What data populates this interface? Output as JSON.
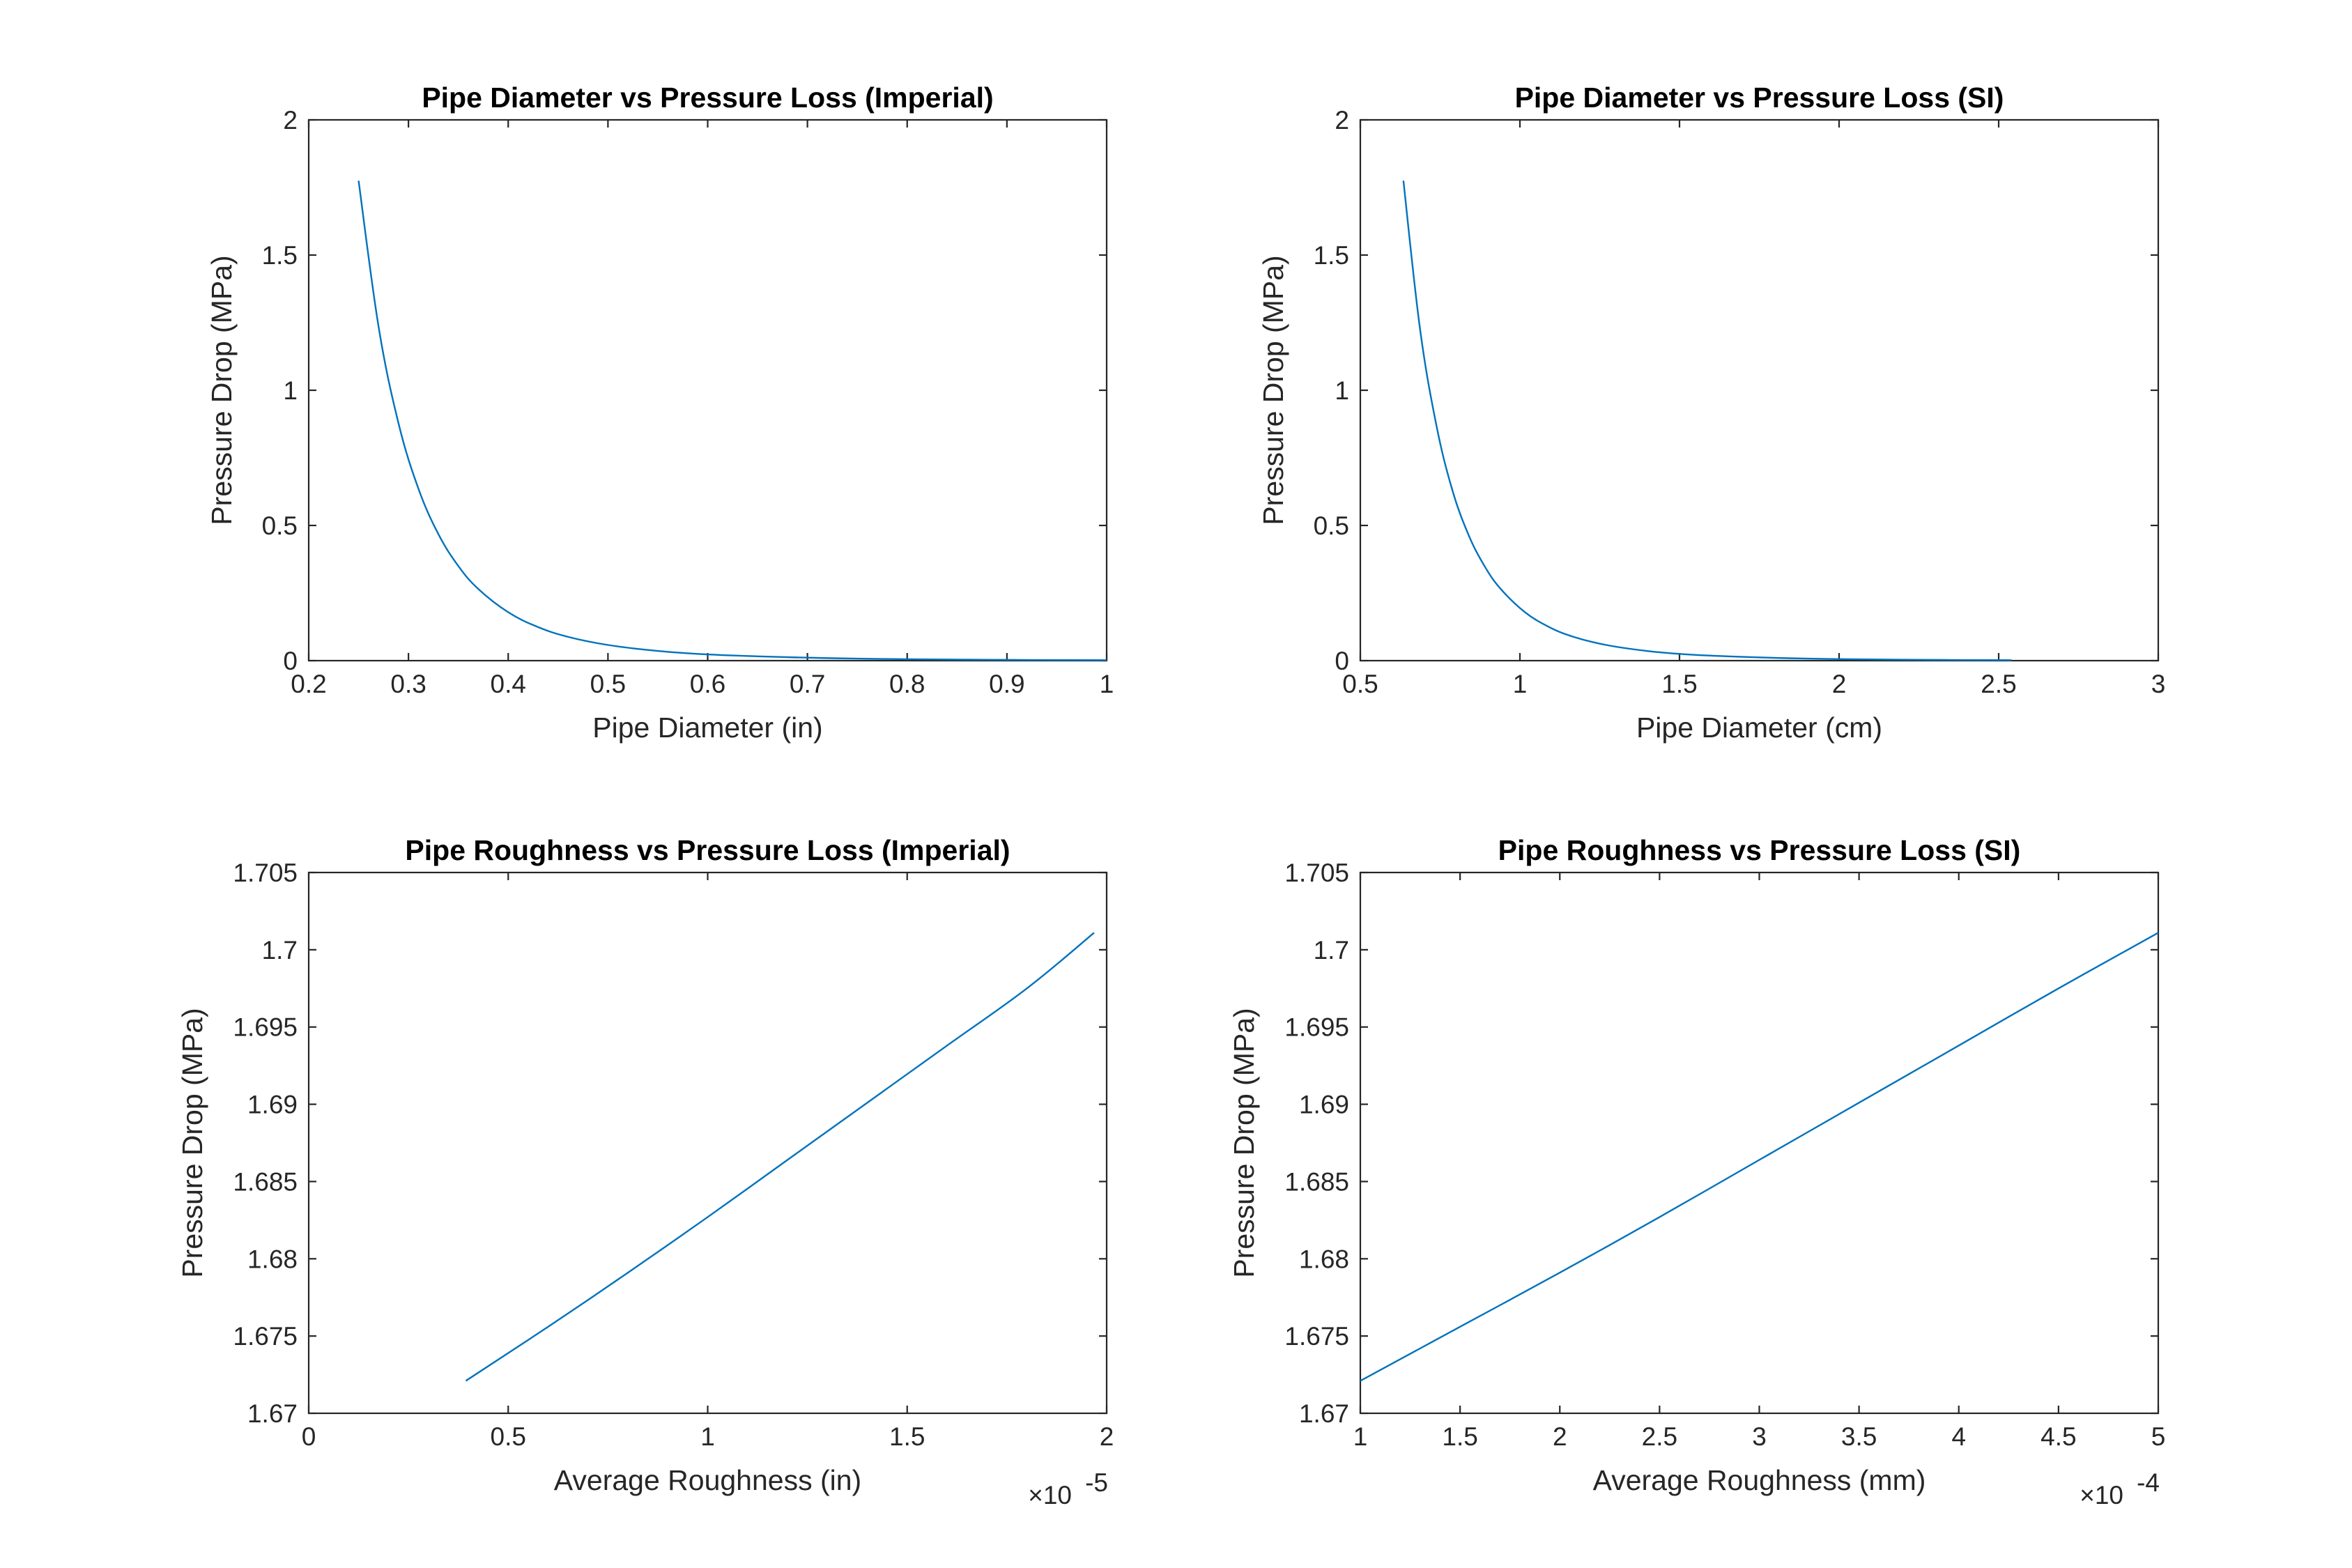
{
  "figure": {
    "line_color": "#0072BD",
    "axis_color": "#262626"
  },
  "chart_data": [
    {
      "type": "line",
      "title": "Pipe Diameter vs Pressure Loss (Imperial)",
      "xlabel": "Pipe Diameter (in)",
      "ylabel": "Pressure Drop (MPa)",
      "xlim": [
        0.2,
        1
      ],
      "ylim": [
        0,
        2
      ],
      "xticks": [
        0.2,
        0.3,
        0.4,
        0.5,
        0.6,
        0.7,
        0.8,
        0.9,
        1
      ],
      "xtick_labels": [
        "0.2",
        "0.3",
        "0.4",
        "0.5",
        "0.6",
        "0.7",
        "0.8",
        "0.9",
        "1"
      ],
      "yticks": [
        0,
        0.5,
        1,
        1.5,
        2
      ],
      "ytick_labels": [
        "0",
        "0.5",
        "1",
        "1.5",
        "2"
      ],
      "x_exponent_label": "",
      "grid": false,
      "series": [
        {
          "x": [
            0.25,
            0.27,
            0.29,
            0.31,
            0.33,
            0.35,
            0.37,
            0.4,
            0.43,
            0.46,
            0.5,
            0.55,
            0.6,
            0.65,
            0.7,
            0.75,
            0.8,
            0.85,
            0.9,
            0.95,
            1.0
          ],
          "y": [
            1.775,
            1.236,
            0.878,
            0.636,
            0.468,
            0.35,
            0.265,
            0.179,
            0.124,
            0.088,
            0.058,
            0.036,
            0.023,
            0.016,
            0.011,
            0.0075,
            0.0054,
            0.0039,
            0.0029,
            0.0022,
            0.0017
          ]
        }
      ]
    },
    {
      "type": "line",
      "title": "Pipe Diameter vs Pressure Loss (SI)",
      "xlabel": "Pipe Diameter (cm)",
      "ylabel": "Pressure Drop (MPa)",
      "xlim": [
        0.5,
        3
      ],
      "ylim": [
        0,
        2
      ],
      "xticks": [
        0.5,
        1,
        1.5,
        2,
        2.5,
        3
      ],
      "xtick_labels": [
        "0.5",
        "1",
        "1.5",
        "2",
        "2.5",
        "3"
      ],
      "yticks": [
        0,
        0.5,
        1,
        1.5,
        2
      ],
      "ytick_labels": [
        "0",
        "0.5",
        "1",
        "1.5",
        "2"
      ],
      "x_exponent_label": "",
      "grid": false,
      "series": [
        {
          "x": [
            0.635,
            0.686,
            0.737,
            0.787,
            0.838,
            0.889,
            0.94,
            1.016,
            1.092,
            1.168,
            1.27,
            1.397,
            1.524,
            1.651,
            1.778,
            1.905,
            2.032,
            2.159,
            2.286,
            2.413,
            2.54
          ],
          "y": [
            1.775,
            1.236,
            0.878,
            0.636,
            0.468,
            0.35,
            0.265,
            0.179,
            0.124,
            0.088,
            0.058,
            0.036,
            0.023,
            0.016,
            0.011,
            0.0075,
            0.0054,
            0.0039,
            0.0029,
            0.0022,
            0.0017
          ]
        }
      ]
    },
    {
      "type": "line",
      "title": "Pipe Roughness vs Pressure Loss (Imperial)",
      "xlabel": "Average Roughness (in)",
      "ylabel": "Pressure Drop (MPa)",
      "xlim": [
        0,
        2e-05
      ],
      "ylim": [
        1.67,
        1.705
      ],
      "xticks": [
        0,
        5e-06,
        1e-05,
        1.5e-05,
        2e-05
      ],
      "xtick_labels": [
        "0",
        "0.5",
        "1",
        "1.5",
        "2"
      ],
      "yticks": [
        1.67,
        1.675,
        1.68,
        1.685,
        1.69,
        1.695,
        1.7,
        1.705
      ],
      "ytick_labels": [
        "1.67",
        "1.675",
        "1.68",
        "1.685",
        "1.69",
        "1.695",
        "1.7",
        "1.705"
      ],
      "x_exponent_label": "×10",
      "x_exponent": "-5",
      "grid": false,
      "series": [
        {
          "x": [
            3.937e-06,
            6e-06,
            8e-06,
            1e-05,
            1.2e-05,
            1.4e-05,
            1.6e-05,
            1.8e-05,
            1.9685e-05
          ],
          "y": [
            1.6721,
            1.6756,
            1.6791,
            1.6827,
            1.6864,
            1.6901,
            1.6938,
            1.6975,
            1.7011
          ]
        }
      ]
    },
    {
      "type": "line",
      "title": "Pipe Roughness vs Pressure Loss (SI)",
      "xlabel": "Average Roughness (mm)",
      "ylabel": "Pressure Drop (MPa)",
      "xlim": [
        0.0001,
        0.0005
      ],
      "ylim": [
        1.67,
        1.705
      ],
      "xticks": [
        0.0001,
        0.00015,
        0.0002,
        0.00025,
        0.0003,
        0.00035,
        0.0004,
        0.00045,
        0.0005
      ],
      "xtick_labels": [
        "1",
        "1.5",
        "2",
        "2.5",
        "3",
        "3.5",
        "4",
        "4.5",
        "5"
      ],
      "yticks": [
        1.67,
        1.675,
        1.68,
        1.685,
        1.69,
        1.695,
        1.7,
        1.705
      ],
      "ytick_labels": [
        "1.67",
        "1.675",
        "1.68",
        "1.685",
        "1.69",
        "1.695",
        "1.7",
        "1.705"
      ],
      "x_exponent_label": "×10",
      "x_exponent": "-4",
      "grid": false,
      "series": [
        {
          "x": [
            0.0001,
            0.00015,
            0.0002,
            0.00025,
            0.0003,
            0.00035,
            0.0004,
            0.00045,
            0.0005
          ],
          "y": [
            1.6721,
            1.6756,
            1.6791,
            1.6827,
            1.6864,
            1.6901,
            1.6938,
            1.6975,
            1.7011
          ]
        }
      ]
    }
  ]
}
